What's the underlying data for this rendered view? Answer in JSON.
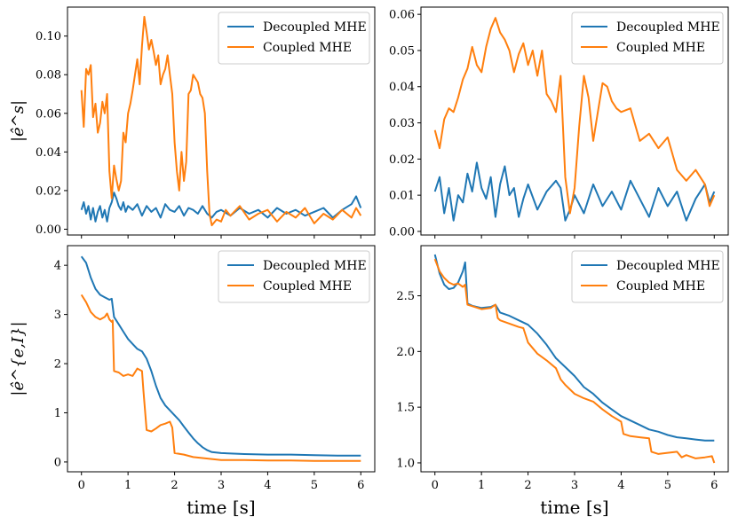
{
  "chart_data": [
    {
      "type": "line",
      "panel": "top-left",
      "ylabel": "|ê^s|",
      "xlabel": "",
      "xlim": [
        -0.3,
        6.3
      ],
      "ylim": [
        -0.003,
        0.115
      ],
      "xticks": [
        0,
        1,
        2,
        3,
        4,
        5,
        6
      ],
      "yticks": [
        0.0,
        0.02,
        0.04,
        0.06,
        0.08,
        0.1
      ],
      "ytick_labels": [
        "0.00",
        "0.02",
        "0.04",
        "0.06",
        "0.08",
        "0.10"
      ],
      "xtick_labels_visible": false,
      "legend": "top-right",
      "series": [
        {
          "name": "Decoupled MHE",
          "color": "#1f77b4",
          "x": [
            0,
            0.05,
            0.1,
            0.15,
            0.2,
            0.25,
            0.3,
            0.35,
            0.4,
            0.45,
            0.5,
            0.55,
            0.6,
            0.65,
            0.7,
            0.75,
            0.8,
            0.85,
            0.9,
            0.95,
            1.0,
            1.1,
            1.2,
            1.3,
            1.4,
            1.5,
            1.6,
            1.7,
            1.8,
            1.9,
            2.0,
            2.1,
            2.2,
            2.3,
            2.4,
            2.5,
            2.6,
            2.7,
            2.8,
            2.9,
            3.0,
            3.2,
            3.4,
            3.6,
            3.8,
            4.0,
            4.2,
            4.4,
            4.6,
            4.8,
            5.0,
            5.2,
            5.4,
            5.6,
            5.8,
            5.9,
            6.0
          ],
          "y": [
            0.01,
            0.014,
            0.008,
            0.012,
            0.005,
            0.011,
            0.004,
            0.009,
            0.012,
            0.006,
            0.01,
            0.004,
            0.011,
            0.014,
            0.019,
            0.016,
            0.012,
            0.01,
            0.014,
            0.009,
            0.012,
            0.01,
            0.013,
            0.007,
            0.012,
            0.009,
            0.011,
            0.006,
            0.013,
            0.01,
            0.009,
            0.012,
            0.007,
            0.011,
            0.01,
            0.008,
            0.012,
            0.008,
            0.006,
            0.009,
            0.01,
            0.007,
            0.011,
            0.008,
            0.01,
            0.006,
            0.011,
            0.008,
            0.01,
            0.007,
            0.009,
            0.011,
            0.006,
            0.01,
            0.013,
            0.017,
            0.011
          ]
        },
        {
          "name": "Coupled MHE",
          "color": "#ff7f0e",
          "x": [
            0,
            0.05,
            0.1,
            0.15,
            0.2,
            0.25,
            0.3,
            0.35,
            0.4,
            0.45,
            0.5,
            0.55,
            0.6,
            0.65,
            0.7,
            0.75,
            0.8,
            0.85,
            0.9,
            0.95,
            1.0,
            1.05,
            1.1,
            1.15,
            1.2,
            1.25,
            1.3,
            1.35,
            1.4,
            1.45,
            1.5,
            1.55,
            1.6,
            1.65,
            1.7,
            1.75,
            1.8,
            1.85,
            1.9,
            1.95,
            2.0,
            2.05,
            2.1,
            2.15,
            2.2,
            2.25,
            2.3,
            2.35,
            2.4,
            2.45,
            2.5,
            2.55,
            2.6,
            2.65,
            2.7,
            2.75,
            2.8,
            2.9,
            3.0,
            3.1,
            3.2,
            3.4,
            3.6,
            3.8,
            4.0,
            4.2,
            4.4,
            4.6,
            4.8,
            5.0,
            5.2,
            5.4,
            5.6,
            5.8,
            5.9,
            6.0
          ],
          "y": [
            0.072,
            0.053,
            0.083,
            0.08,
            0.085,
            0.058,
            0.065,
            0.05,
            0.055,
            0.066,
            0.06,
            0.07,
            0.03,
            0.016,
            0.033,
            0.026,
            0.02,
            0.025,
            0.05,
            0.045,
            0.06,
            0.065,
            0.072,
            0.08,
            0.088,
            0.075,
            0.095,
            0.11,
            0.102,
            0.093,
            0.098,
            0.092,
            0.085,
            0.09,
            0.075,
            0.08,
            0.083,
            0.09,
            0.08,
            0.07,
            0.045,
            0.03,
            0.02,
            0.04,
            0.025,
            0.035,
            0.07,
            0.072,
            0.08,
            0.078,
            0.076,
            0.07,
            0.068,
            0.06,
            0.03,
            0.008,
            0.002,
            0.005,
            0.004,
            0.01,
            0.007,
            0.012,
            0.005,
            0.008,
            0.01,
            0.004,
            0.009,
            0.006,
            0.011,
            0.003,
            0.008,
            0.005,
            0.01,
            0.006,
            0.011,
            0.007
          ]
        }
      ]
    },
    {
      "type": "line",
      "panel": "top-right",
      "ylabel": "",
      "xlabel": "",
      "xlim": [
        -0.3,
        6.3
      ],
      "ylim": [
        -0.001,
        0.062
      ],
      "xticks": [
        0,
        1,
        2,
        3,
        4,
        5,
        6
      ],
      "yticks": [
        0.0,
        0.01,
        0.02,
        0.03,
        0.04,
        0.05,
        0.06
      ],
      "ytick_labels": [
        "0.00",
        "0.01",
        "0.02",
        "0.03",
        "0.04",
        "0.05",
        "0.06"
      ],
      "xtick_labels_visible": false,
      "legend": "top-right",
      "series": [
        {
          "name": "Decoupled MHE",
          "color": "#1f77b4",
          "x": [
            0,
            0.1,
            0.2,
            0.3,
            0.4,
            0.5,
            0.6,
            0.7,
            0.8,
            0.9,
            1.0,
            1.1,
            1.2,
            1.3,
            1.4,
            1.5,
            1.6,
            1.7,
            1.8,
            1.9,
            2.0,
            2.2,
            2.4,
            2.6,
            2.7,
            2.8,
            2.9,
            3.0,
            3.2,
            3.4,
            3.6,
            3.8,
            4.0,
            4.2,
            4.4,
            4.6,
            4.8,
            5.0,
            5.2,
            5.4,
            5.6,
            5.8,
            5.9,
            6.0
          ],
          "y": [
            0.011,
            0.015,
            0.005,
            0.012,
            0.003,
            0.01,
            0.008,
            0.016,
            0.011,
            0.019,
            0.012,
            0.009,
            0.015,
            0.004,
            0.013,
            0.018,
            0.01,
            0.012,
            0.004,
            0.009,
            0.013,
            0.006,
            0.011,
            0.014,
            0.012,
            0.003,
            0.006,
            0.01,
            0.005,
            0.013,
            0.007,
            0.011,
            0.006,
            0.014,
            0.009,
            0.004,
            0.012,
            0.007,
            0.011,
            0.003,
            0.009,
            0.013,
            0.008,
            0.011
          ]
        },
        {
          "name": "Coupled MHE",
          "color": "#ff7f0e",
          "x": [
            0,
            0.1,
            0.2,
            0.3,
            0.4,
            0.5,
            0.6,
            0.7,
            0.8,
            0.9,
            1.0,
            1.1,
            1.2,
            1.3,
            1.4,
            1.5,
            1.6,
            1.7,
            1.8,
            1.9,
            2.0,
            2.1,
            2.2,
            2.3,
            2.4,
            2.5,
            2.6,
            2.7,
            2.8,
            2.9,
            3.0,
            3.1,
            3.2,
            3.3,
            3.4,
            3.5,
            3.6,
            3.7,
            3.8,
            3.9,
            4.0,
            4.2,
            4.4,
            4.6,
            4.8,
            5.0,
            5.2,
            5.4,
            5.6,
            5.8,
            5.9,
            6.0
          ],
          "y": [
            0.028,
            0.023,
            0.031,
            0.034,
            0.033,
            0.037,
            0.042,
            0.045,
            0.051,
            0.046,
            0.044,
            0.051,
            0.056,
            0.059,
            0.055,
            0.053,
            0.05,
            0.044,
            0.049,
            0.052,
            0.046,
            0.05,
            0.043,
            0.05,
            0.038,
            0.036,
            0.033,
            0.043,
            0.015,
            0.005,
            0.012,
            0.029,
            0.043,
            0.037,
            0.025,
            0.033,
            0.041,
            0.04,
            0.036,
            0.034,
            0.033,
            0.034,
            0.025,
            0.027,
            0.023,
            0.026,
            0.017,
            0.014,
            0.017,
            0.013,
            0.007,
            0.01
          ]
        }
      ]
    },
    {
      "type": "line",
      "panel": "bottom-left",
      "ylabel": "|ê^{e,I}|",
      "xlabel": "time [s]",
      "xlim": [
        -0.3,
        6.3
      ],
      "ylim": [
        -0.2,
        4.4
      ],
      "xticks": [
        0,
        1,
        2,
        3,
        4,
        5,
        6
      ],
      "yticks": [
        0,
        1,
        2,
        3,
        4
      ],
      "ytick_labels": [
        "0",
        "1",
        "2",
        "3",
        "4"
      ],
      "xtick_labels_visible": true,
      "legend": "top-right",
      "series": [
        {
          "name": "Decoupled MHE",
          "color": "#1f77b4",
          "x": [
            0,
            0.1,
            0.2,
            0.3,
            0.4,
            0.5,
            0.6,
            0.65,
            0.7,
            0.8,
            0.9,
            1.0,
            1.1,
            1.2,
            1.3,
            1.4,
            1.5,
            1.6,
            1.7,
            1.8,
            1.9,
            2.0,
            2.1,
            2.2,
            2.3,
            2.4,
            2.5,
            2.6,
            2.7,
            2.8,
            3.0,
            3.5,
            4.0,
            4.5,
            5.0,
            5.5,
            6.0
          ],
          "y": [
            4.18,
            4.05,
            3.75,
            3.52,
            3.4,
            3.35,
            3.3,
            3.32,
            2.95,
            2.8,
            2.65,
            2.5,
            2.4,
            2.3,
            2.25,
            2.1,
            1.85,
            1.55,
            1.3,
            1.15,
            1.05,
            0.95,
            0.85,
            0.72,
            0.6,
            0.48,
            0.38,
            0.3,
            0.24,
            0.2,
            0.18,
            0.16,
            0.15,
            0.15,
            0.14,
            0.13,
            0.13
          ]
        },
        {
          "name": "Coupled MHE",
          "color": "#ff7f0e",
          "x": [
            0,
            0.1,
            0.2,
            0.3,
            0.4,
            0.5,
            0.55,
            0.6,
            0.65,
            0.67,
            0.7,
            0.8,
            0.9,
            1.0,
            1.1,
            1.2,
            1.3,
            1.33,
            1.4,
            1.5,
            1.6,
            1.7,
            1.8,
            1.9,
            1.95,
            2.0,
            2.2,
            2.4,
            2.6,
            2.8,
            3.0,
            3.5,
            4.0,
            4.5,
            5.0,
            5.5,
            6.0
          ],
          "y": [
            3.4,
            3.25,
            3.05,
            2.95,
            2.9,
            2.95,
            3.02,
            2.9,
            2.85,
            2.88,
            1.85,
            1.82,
            1.75,
            1.78,
            1.75,
            1.9,
            1.85,
            1.45,
            0.65,
            0.62,
            0.68,
            0.75,
            0.78,
            0.82,
            0.7,
            0.18,
            0.15,
            0.1,
            0.08,
            0.06,
            0.04,
            0.04,
            0.03,
            0.03,
            0.02,
            0.02,
            0.02
          ]
        }
      ]
    },
    {
      "type": "line",
      "panel": "bottom-right",
      "ylabel": "",
      "xlabel": "time [s]",
      "xlim": [
        -0.3,
        6.3
      ],
      "ylim": [
        0.92,
        2.95
      ],
      "xticks": [
        0,
        1,
        2,
        3,
        4,
        5,
        6
      ],
      "yticks": [
        1.0,
        1.5,
        2.0,
        2.5
      ],
      "ytick_labels": [
        "1.0",
        "1.5",
        "2.0",
        "2.5"
      ],
      "xtick_labels_visible": true,
      "legend": "top-right",
      "series": [
        {
          "name": "Decoupled MHE",
          "color": "#1f77b4",
          "x": [
            0,
            0.1,
            0.2,
            0.3,
            0.4,
            0.5,
            0.6,
            0.65,
            0.7,
            0.8,
            1.0,
            1.2,
            1.3,
            1.4,
            1.6,
            1.8,
            2.0,
            2.2,
            2.4,
            2.6,
            2.8,
            3.0,
            3.2,
            3.4,
            3.6,
            3.8,
            4.0,
            4.2,
            4.4,
            4.6,
            4.8,
            5.0,
            5.2,
            5.4,
            5.6,
            5.8,
            6.0
          ],
          "y": [
            2.87,
            2.7,
            2.6,
            2.56,
            2.57,
            2.62,
            2.72,
            2.8,
            2.43,
            2.41,
            2.39,
            2.4,
            2.42,
            2.35,
            2.32,
            2.28,
            2.24,
            2.16,
            2.06,
            1.94,
            1.86,
            1.78,
            1.68,
            1.62,
            1.54,
            1.48,
            1.42,
            1.38,
            1.34,
            1.3,
            1.28,
            1.25,
            1.23,
            1.22,
            1.21,
            1.2,
            1.2
          ]
        },
        {
          "name": "Coupled MHE",
          "color": "#ff7f0e",
          "x": [
            0,
            0.1,
            0.2,
            0.3,
            0.4,
            0.5,
            0.6,
            0.65,
            0.7,
            1.0,
            1.2,
            1.3,
            1.35,
            1.4,
            1.6,
            1.8,
            1.9,
            2.0,
            2.2,
            2.4,
            2.6,
            2.7,
            2.8,
            3.0,
            3.2,
            3.4,
            3.6,
            3.8,
            4.0,
            4.05,
            4.2,
            4.4,
            4.6,
            4.65,
            4.8,
            5.0,
            5.2,
            5.3,
            5.4,
            5.6,
            5.8,
            5.95,
            6.0
          ],
          "y": [
            2.83,
            2.72,
            2.66,
            2.62,
            2.6,
            2.61,
            2.58,
            2.6,
            2.42,
            2.38,
            2.39,
            2.42,
            2.3,
            2.28,
            2.25,
            2.22,
            2.21,
            2.08,
            1.98,
            1.92,
            1.85,
            1.75,
            1.7,
            1.62,
            1.58,
            1.55,
            1.48,
            1.42,
            1.37,
            1.26,
            1.24,
            1.23,
            1.22,
            1.1,
            1.08,
            1.09,
            1.1,
            1.05,
            1.07,
            1.04,
            1.05,
            1.06,
            1.0
          ]
        }
      ]
    }
  ]
}
